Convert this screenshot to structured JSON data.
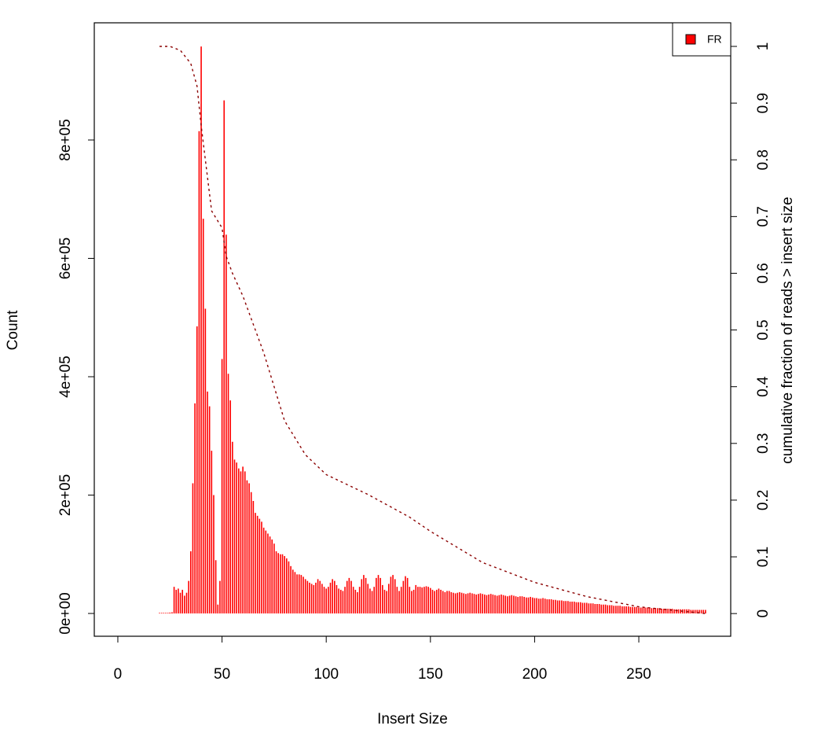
{
  "chart_data": {
    "type": "bar",
    "xlabel": "Insert Size",
    "ylabel": "Count",
    "y2label": "cumulative fraction of reads > insert size",
    "xlim": [
      -11.3,
      294.1
    ],
    "ylim": [
      -38500,
      998000
    ],
    "y2lim": [
      -0.04,
      1.0416
    ],
    "xticks": [
      0,
      50,
      100,
      150,
      200,
      250
    ],
    "yticks": [
      {
        "value": 0,
        "label": "0e+00"
      },
      {
        "value": 200000,
        "label": "2e+05"
      },
      {
        "value": 400000,
        "label": "4e+05"
      },
      {
        "value": 600000,
        "label": "6e+05"
      },
      {
        "value": 800000,
        "label": "8e+05"
      }
    ],
    "y2ticks": [
      0,
      0.1,
      0.2,
      0.3,
      0.4,
      0.5,
      0.6,
      0.7,
      0.8,
      0.9,
      1
    ],
    "legend": "top-right",
    "series": [
      {
        "name": "FR",
        "color": "#ff0000",
        "x": [
          20,
          21,
          22,
          23,
          24,
          25,
          26,
          27,
          28,
          29,
          30,
          31,
          32,
          33,
          34,
          35,
          36,
          37,
          38,
          39,
          40,
          41,
          42,
          43,
          44,
          45,
          46,
          47,
          48,
          49,
          50,
          51,
          52,
          53,
          54,
          55,
          56,
          57,
          58,
          59,
          60,
          61,
          62,
          63,
          64,
          65,
          66,
          67,
          68,
          69,
          70,
          71,
          72,
          73,
          74,
          75,
          76,
          77,
          78,
          79,
          80,
          81,
          82,
          83,
          84,
          85,
          86,
          87,
          88,
          89,
          90,
          91,
          92,
          93,
          94,
          95,
          96,
          97,
          98,
          99,
          100,
          101,
          102,
          103,
          104,
          105,
          106,
          107,
          108,
          109,
          110,
          111,
          112,
          113,
          114,
          115,
          116,
          117,
          118,
          119,
          120,
          121,
          122,
          123,
          124,
          125,
          126,
          127,
          128,
          129,
          130,
          131,
          132,
          133,
          134,
          135,
          136,
          137,
          138,
          139,
          140,
          141,
          142,
          143,
          144,
          145,
          146,
          147,
          148,
          149,
          150,
          151,
          152,
          153,
          154,
          155,
          156,
          157,
          158,
          159,
          160,
          161,
          162,
          163,
          164,
          165,
          166,
          167,
          168,
          169,
          170,
          171,
          172,
          173,
          174,
          175,
          176,
          177,
          178,
          179,
          180,
          181,
          182,
          183,
          184,
          185,
          186,
          187,
          188,
          189,
          190,
          191,
          192,
          193,
          194,
          195,
          196,
          197,
          198,
          199,
          200,
          201,
          202,
          203,
          204,
          205,
          206,
          207,
          208,
          209,
          210,
          211,
          212,
          213,
          214,
          215,
          216,
          217,
          218,
          219,
          220,
          221,
          222,
          223,
          224,
          225,
          226,
          227,
          228,
          229,
          230,
          231,
          232,
          233,
          234,
          235,
          236,
          237,
          238,
          239,
          240,
          241,
          242,
          243,
          244,
          245,
          246,
          247,
          248,
          249,
          250,
          251,
          252,
          253,
          254,
          255,
          256,
          257,
          258,
          259,
          260,
          261,
          262,
          263,
          264,
          265,
          266,
          267,
          268,
          269,
          270,
          271,
          272,
          273,
          274,
          275,
          276,
          277,
          278,
          279,
          280,
          281,
          282
        ],
        "values": [
          1000,
          1000,
          1000,
          1000,
          1000,
          1500,
          2000,
          45000,
          40000,
          42000,
          35000,
          40000,
          30000,
          35000,
          55000,
          105000,
          220000,
          355000,
          485000,
          815000,
          958000,
          667000,
          515000,
          375000,
          350000,
          275000,
          200000,
          90000,
          15000,
          55000,
          430000,
          867000,
          640000,
          405000,
          360000,
          290000,
          260000,
          255000,
          245000,
          240000,
          248000,
          240000,
          225000,
          220000,
          205000,
          190000,
          170000,
          165000,
          160000,
          155000,
          145000,
          140000,
          135000,
          130000,
          125000,
          118000,
          105000,
          102000,
          100000,
          100000,
          97000,
          93000,
          88000,
          80000,
          74000,
          70000,
          66000,
          66000,
          65000,
          62000,
          58000,
          55000,
          52000,
          50000,
          48000,
          52000,
          58000,
          55000,
          50000,
          45000,
          42000,
          45000,
          52000,
          58000,
          55000,
          48000,
          42000,
          40000,
          38000,
          45000,
          55000,
          60000,
          55000,
          45000,
          40000,
          36000,
          45000,
          58000,
          65000,
          60000,
          50000,
          42000,
          38000,
          45000,
          60000,
          65000,
          60000,
          48000,
          40000,
          38000,
          50000,
          62000,
          65000,
          58000,
          45000,
          38000,
          45000,
          55000,
          63000,
          60000,
          45000,
          38000,
          40000,
          48000,
          45000,
          45000,
          44000,
          45000,
          46000,
          45000,
          43000,
          40000,
          38000,
          40000,
          42000,
          40000,
          38000,
          36000,
          38000,
          38000,
          36000,
          35000,
          34000,
          35000,
          36000,
          35000,
          34000,
          33000,
          34000,
          35000,
          34000,
          33000,
          32000,
          33000,
          34000,
          33000,
          32000,
          31000,
          32000,
          33000,
          32000,
          31000,
          30000,
          31000,
          32000,
          31000,
          30000,
          29000,
          30000,
          31000,
          30000,
          29000,
          28000,
          29000,
          29000,
          28000,
          27000,
          27000,
          28000,
          27000,
          26000,
          26000,
          25000,
          25000,
          26000,
          25000,
          24000,
          24000,
          24000,
          23000,
          23000,
          22000,
          22000,
          22000,
          21000,
          21000,
          21000,
          20000,
          20000,
          20000,
          19000,
          19000,
          19000,
          18000,
          18000,
          18000,
          17000,
          17000,
          17000,
          16000,
          16000,
          16000,
          15000,
          15000,
          15000,
          14000,
          14000,
          14000,
          13000,
          13000,
          13000,
          13000,
          12000,
          12000,
          12000,
          12000,
          11000,
          11000,
          11000,
          11000,
          10000,
          10000,
          10000,
          10000,
          10000,
          9000,
          9000,
          9000,
          9000,
          9000,
          9000,
          8000,
          8000,
          8000,
          8000,
          8000,
          8000,
          7000,
          7000,
          7000,
          7000,
          7000,
          7000,
          7000,
          7000,
          6000,
          6000,
          6000,
          6000,
          6000,
          6000,
          6000,
          6000
        ]
      },
      {
        "type": "line",
        "axis": "y2",
        "color": "#8b0000",
        "linestyle": "dashed",
        "x": [
          20,
          25,
          30,
          35,
          38,
          40,
          42,
          45,
          50,
          52,
          55,
          60,
          70,
          80,
          90,
          100,
          120,
          140,
          150,
          175,
          200,
          225,
          250,
          282
        ],
        "values": [
          1,
          1,
          0.993,
          0.97,
          0.93,
          0.86,
          0.8,
          0.71,
          0.68,
          0.63,
          0.6,
          0.56,
          0.46,
          0.34,
          0.28,
          0.245,
          0.21,
          0.17,
          0.145,
          0.09,
          0.055,
          0.03,
          0.012,
          0
        ]
      }
    ]
  }
}
